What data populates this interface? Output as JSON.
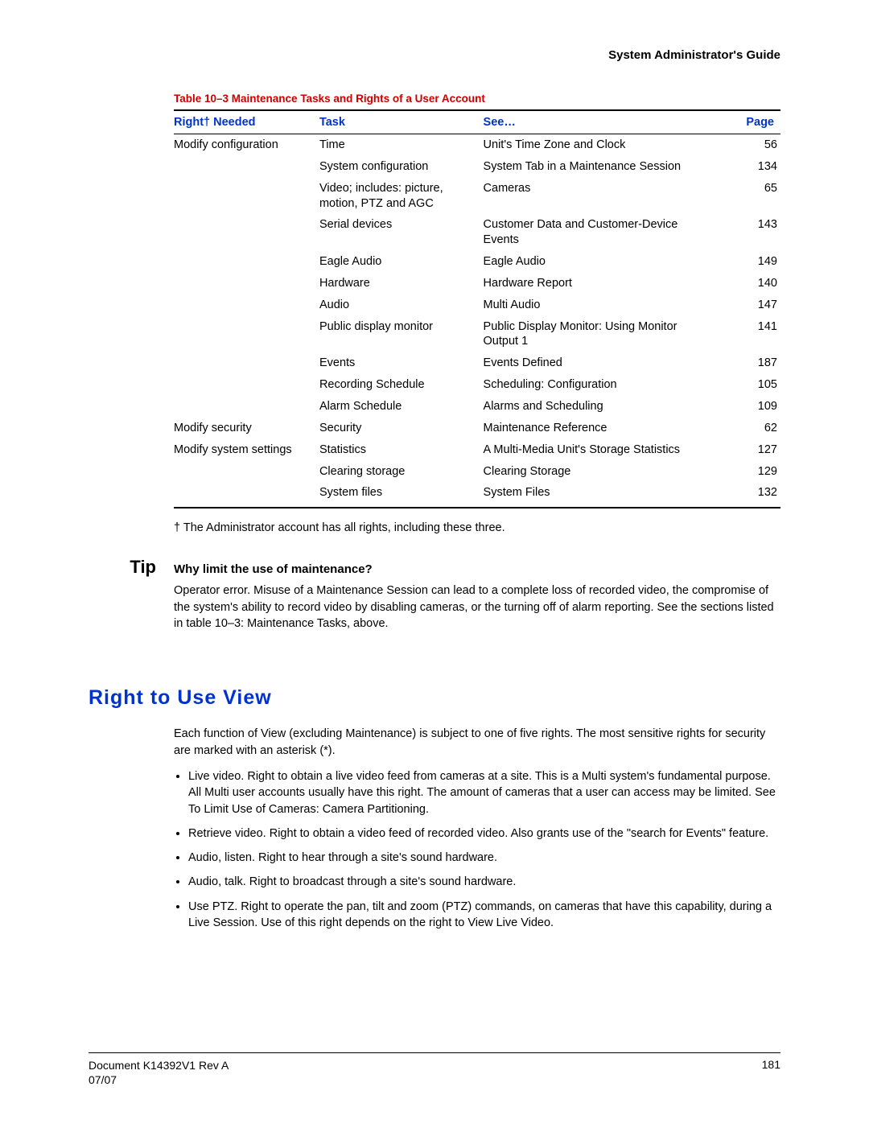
{
  "header": {
    "title": "System Administrator's Guide"
  },
  "colors": {
    "blue": "#0033cc",
    "red": "#cc0000"
  },
  "table": {
    "caption": "Table 10–3  Maintenance Tasks and Rights of a User Account",
    "columns": [
      "Right† Needed",
      "Task",
      "See…",
      "Page"
    ],
    "col_widths": [
      "24%",
      "27%",
      "37%",
      "12%"
    ],
    "rows": [
      {
        "right": "Modify configuration",
        "task": "Time",
        "see": "Unit's Time Zone and Clock",
        "page": "56"
      },
      {
        "right": "",
        "task": "System configuration",
        "see": "System Tab in a Maintenance Session",
        "page": "134"
      },
      {
        "right": "",
        "task": "Video; includes: picture, motion, PTZ and AGC",
        "see": "Cameras",
        "page": "65"
      },
      {
        "right": "",
        "task": "Serial devices",
        "see": "Customer Data and Customer-Device Events",
        "page": "143"
      },
      {
        "right": "",
        "task": "Eagle Audio",
        "see": "Eagle Audio",
        "page": "149"
      },
      {
        "right": "",
        "task": "Hardware",
        "see": "Hardware Report",
        "page": "140"
      },
      {
        "right": "",
        "task": "Audio",
        "see": "Multi Audio",
        "page": "147"
      },
      {
        "right": "",
        "task": "Public display monitor",
        "see": "Public Display Monitor: Using Monitor Output 1",
        "page": "141"
      },
      {
        "right": "",
        "task": "Events",
        "see": "Events Defined",
        "page": "187"
      },
      {
        "right": "",
        "task": "Recording Schedule",
        "see": "Scheduling: Configuration",
        "page": "105"
      },
      {
        "right": "",
        "task": "Alarm Schedule",
        "see": "Alarms and Scheduling",
        "page": "109"
      },
      {
        "right": "Modify security",
        "task": "Security",
        "see": "Maintenance Reference",
        "page": "62"
      },
      {
        "right": "Modify system settings",
        "task": "Statistics",
        "see": "A Multi-Media Unit's Storage Statistics",
        "page": "127"
      },
      {
        "right": "",
        "task": "Clearing storage",
        "see": "Clearing Storage",
        "page": "129"
      },
      {
        "right": "",
        "task": "System files",
        "see": "System Files",
        "page": "132"
      }
    ],
    "footnote": "† The Administrator account has all rights, including these three."
  },
  "tip": {
    "label": "Tip",
    "heading": "Why limit the use of maintenance?",
    "body": "Operator error. Misuse of a Maintenance Session can lead to a complete loss of recorded video, the compromise of the system's ability to record video by disabling cameras, or the turning off of alarm reporting. See the sections listed in table 10–3: Maintenance Tasks, above."
  },
  "section": {
    "heading": "Right to Use View",
    "intro": "Each function of View (excluding Maintenance) is subject to one of five rights. The most sensitive rights for security are marked with an asterisk (*).",
    "bullets": [
      "Live video. Right to obtain a live video feed from cameras at a site. This is a Multi system's fundamental purpose. All Multi user accounts usually have this right. The amount of cameras that a user can access may be limited. See To Limit Use of Cameras: Camera Partitioning.",
      "Retrieve video. Right to obtain a video feed of recorded video. Also grants use of the \"search for Events\" feature.",
      "Audio, listen. Right to hear through a site's sound hardware.",
      "Audio, talk. Right to broadcast through a site's sound hardware.",
      "Use PTZ. Right to operate the pan, tilt and zoom (PTZ) commands, on cameras that have this capability, during a Live Session. Use of this right depends on the right to View Live Video."
    ]
  },
  "footer": {
    "doc": "Document K14392V1 Rev A",
    "date": "07/07",
    "page": "181"
  }
}
